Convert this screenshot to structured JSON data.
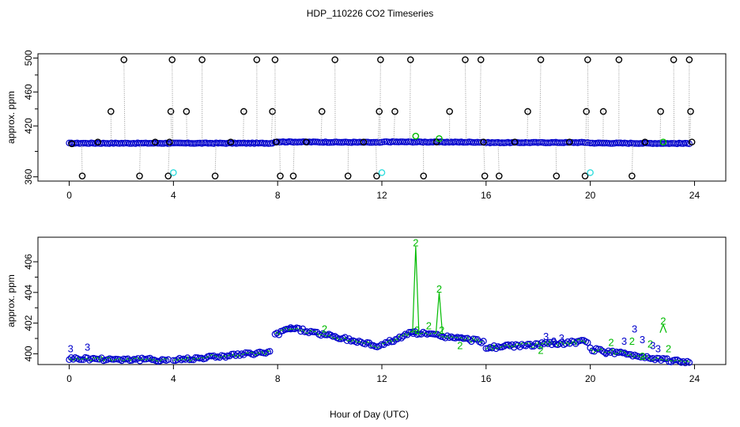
{
  "figure": {
    "title": "HDP_110226  CO2 Timeseries",
    "xlabel": "Hour of Day (UTC)"
  },
  "colors": {
    "black": "#000000",
    "blue": "#0000cc",
    "green": "#00bb00",
    "cyan": "#33dddd",
    "grid": "#999999"
  },
  "chart_data": [
    {
      "type": "scatter",
      "title": "",
      "xlabel": "",
      "ylabel": "approx. ppm",
      "xlim": [
        -1.2,
        25.2
      ],
      "ylim": [
        355,
        505
      ],
      "xticks": [
        "0",
        "4",
        "8",
        "12",
        "16",
        "20",
        "24"
      ],
      "yticks": [
        "360",
        "420",
        "460",
        "500"
      ],
      "grid": false,
      "series": [
        {
          "name": "",
          "color": "blue",
          "marker": "circle",
          "segments": [
            {
              "x": [
                0,
                7.8
              ],
              "y": [
                399.6,
                399.6
              ]
            },
            {
              "x": [
                7.9,
                12.0
              ],
              "y": [
                401.3,
                400.5
              ]
            },
            {
              "x": [
                12.1,
                15.9
              ],
              "y": [
                401.2,
                400.8
              ]
            },
            {
              "x": [
                16.0,
                19.9
              ],
              "y": [
                400.3,
                400.5
              ]
            },
            {
              "x": [
                20.0,
                23.8
              ],
              "y": [
                399.8,
                399.3
              ]
            }
          ]
        },
        {
          "name": "",
          "color": "black",
          "marker": "circle",
          "x": [
            0.1,
            0.5,
            1.1,
            1.6,
            2.1,
            2.7,
            3.3,
            3.8,
            3.85,
            3.9,
            3.95,
            4.5,
            5.1,
            5.6,
            6.2,
            6.7,
            7.2,
            7.8,
            7.9,
            7.95,
            8.1,
            8.6,
            9.1,
            9.7,
            10.2,
            10.7,
            11.3,
            11.8,
            11.9,
            11.95,
            12.5,
            13.1,
            13.6,
            14.1,
            14.6,
            15.2,
            15.8,
            15.9,
            15.95,
            16.5,
            17.1,
            17.6,
            18.1,
            18.7,
            19.2,
            19.8,
            19.85,
            19.9,
            20.5,
            21.1,
            21.6,
            22.1,
            22.7,
            23.2,
            23.8,
            23.85,
            23.9
          ],
          "y": [
            399,
            361,
            401,
            437,
            498,
            361,
            401,
            361,
            401,
            437,
            498,
            437,
            498,
            361,
            401,
            437,
            498,
            437,
            498,
            401,
            361,
            361,
            401,
            437,
            498,
            361,
            401,
            361,
            437,
            498,
            437,
            498,
            361,
            401,
            437,
            498,
            498,
            401,
            361,
            361,
            401,
            437,
            498,
            361,
            401,
            361,
            437,
            498,
            437,
            498,
            361,
            401,
            437,
            498,
            498,
            437,
            401
          ]
        },
        {
          "name": "",
          "color": "green",
          "marker": "circle",
          "x": [
            13.3,
            14.2,
            22.8
          ],
          "y": [
            408,
            405,
            401
          ]
        },
        {
          "name": "",
          "color": "cyan",
          "marker": "circle",
          "x": [
            4.0,
            12.0,
            20.0
          ],
          "y": [
            365,
            365,
            365
          ]
        }
      ]
    },
    {
      "type": "line",
      "title": "",
      "xlabel": "Hour of Day (UTC)",
      "ylabel": "approx. ppm",
      "xlim": [
        -1.2,
        25.2
      ],
      "ylim": [
        399.3,
        407.6
      ],
      "xticks": [
        "0",
        "4",
        "8",
        "12",
        "16",
        "20",
        "24"
      ],
      "yticks": [
        "400",
        "402",
        "404",
        "406"
      ],
      "grid": false,
      "series": [
        {
          "name": "",
          "color": "blue",
          "marker": "circle",
          "segments": [
            {
              "x": [
                0,
                3.8
              ],
              "y": [
                399.7,
                399.6
              ]
            },
            {
              "x": [
                4.0,
                7.7
              ],
              "y": [
                399.6,
                400.1
              ]
            },
            {
              "x": [
                7.9,
                8.5,
                11.9
              ],
              "y": [
                401.2,
                401.7,
                400.5
              ]
            },
            {
              "x": [
                12.0,
                13.2,
                15.9
              ],
              "y": [
                400.6,
                401.4,
                400.8
              ]
            },
            {
              "x": [
                16.0,
                19.9
              ],
              "y": [
                400.4,
                400.8
              ]
            },
            {
              "x": [
                20.0,
                23.8
              ],
              "y": [
                400.3,
                399.4
              ]
            }
          ]
        },
        {
          "name": "",
          "color": "green",
          "marker": "line",
          "x": [
            13.3,
            14.2,
            22.8
          ],
          "y": [
            407.0,
            404.0,
            401.9
          ]
        }
      ],
      "annotations": [
        {
          "text": "2",
          "color": "green",
          "x": 13.3,
          "y": 407.0
        },
        {
          "text": "2",
          "color": "green",
          "x": 14.2,
          "y": 404.0
        },
        {
          "text": "2",
          "color": "green",
          "x": 13.8,
          "y": 401.6
        },
        {
          "text": "2",
          "color": "green",
          "x": 14.3,
          "y": 401.3
        },
        {
          "text": "2",
          "color": "green",
          "x": 13.35,
          "y": 401.3
        },
        {
          "text": "2",
          "color": "green",
          "x": 9.8,
          "y": 401.4
        },
        {
          "text": "2",
          "color": "green",
          "x": 15.0,
          "y": 400.3
        },
        {
          "text": "2",
          "color": "green",
          "x": 18.1,
          "y": 400.0
        },
        {
          "text": "2",
          "color": "green",
          "x": 20.8,
          "y": 400.5
        },
        {
          "text": "2",
          "color": "green",
          "x": 21.6,
          "y": 400.6
        },
        {
          "text": "2",
          "color": "green",
          "x": 22.3,
          "y": 400.4
        },
        {
          "text": "2",
          "color": "green",
          "x": 22.0,
          "y": 399.6
        },
        {
          "text": "2",
          "color": "green",
          "x": 22.8,
          "y": 401.9
        },
        {
          "text": "2",
          "color": "green",
          "x": 23.0,
          "y": 400.1
        },
        {
          "text": "3",
          "color": "blue",
          "x": 0.05,
          "y": 400.1
        },
        {
          "text": "3",
          "color": "blue",
          "x": 0.7,
          "y": 400.2
        },
        {
          "text": "3",
          "color": "blue",
          "x": 18.3,
          "y": 400.9
        },
        {
          "text": "3",
          "color": "blue",
          "x": 18.6,
          "y": 400.6
        },
        {
          "text": "3",
          "color": "blue",
          "x": 18.9,
          "y": 400.8
        },
        {
          "text": "3",
          "color": "blue",
          "x": 21.7,
          "y": 401.4
        },
        {
          "text": "3",
          "color": "blue",
          "x": 21.3,
          "y": 400.6
        },
        {
          "text": "3",
          "color": "blue",
          "x": 22.0,
          "y": 400.7
        },
        {
          "text": "3",
          "color": "blue",
          "x": 22.4,
          "y": 400.3
        },
        {
          "text": "3",
          "color": "blue",
          "x": 22.6,
          "y": 400.1
        },
        {
          "text": "3",
          "color": "blue",
          "x": 20.6,
          "y": 399.8
        }
      ]
    }
  ]
}
